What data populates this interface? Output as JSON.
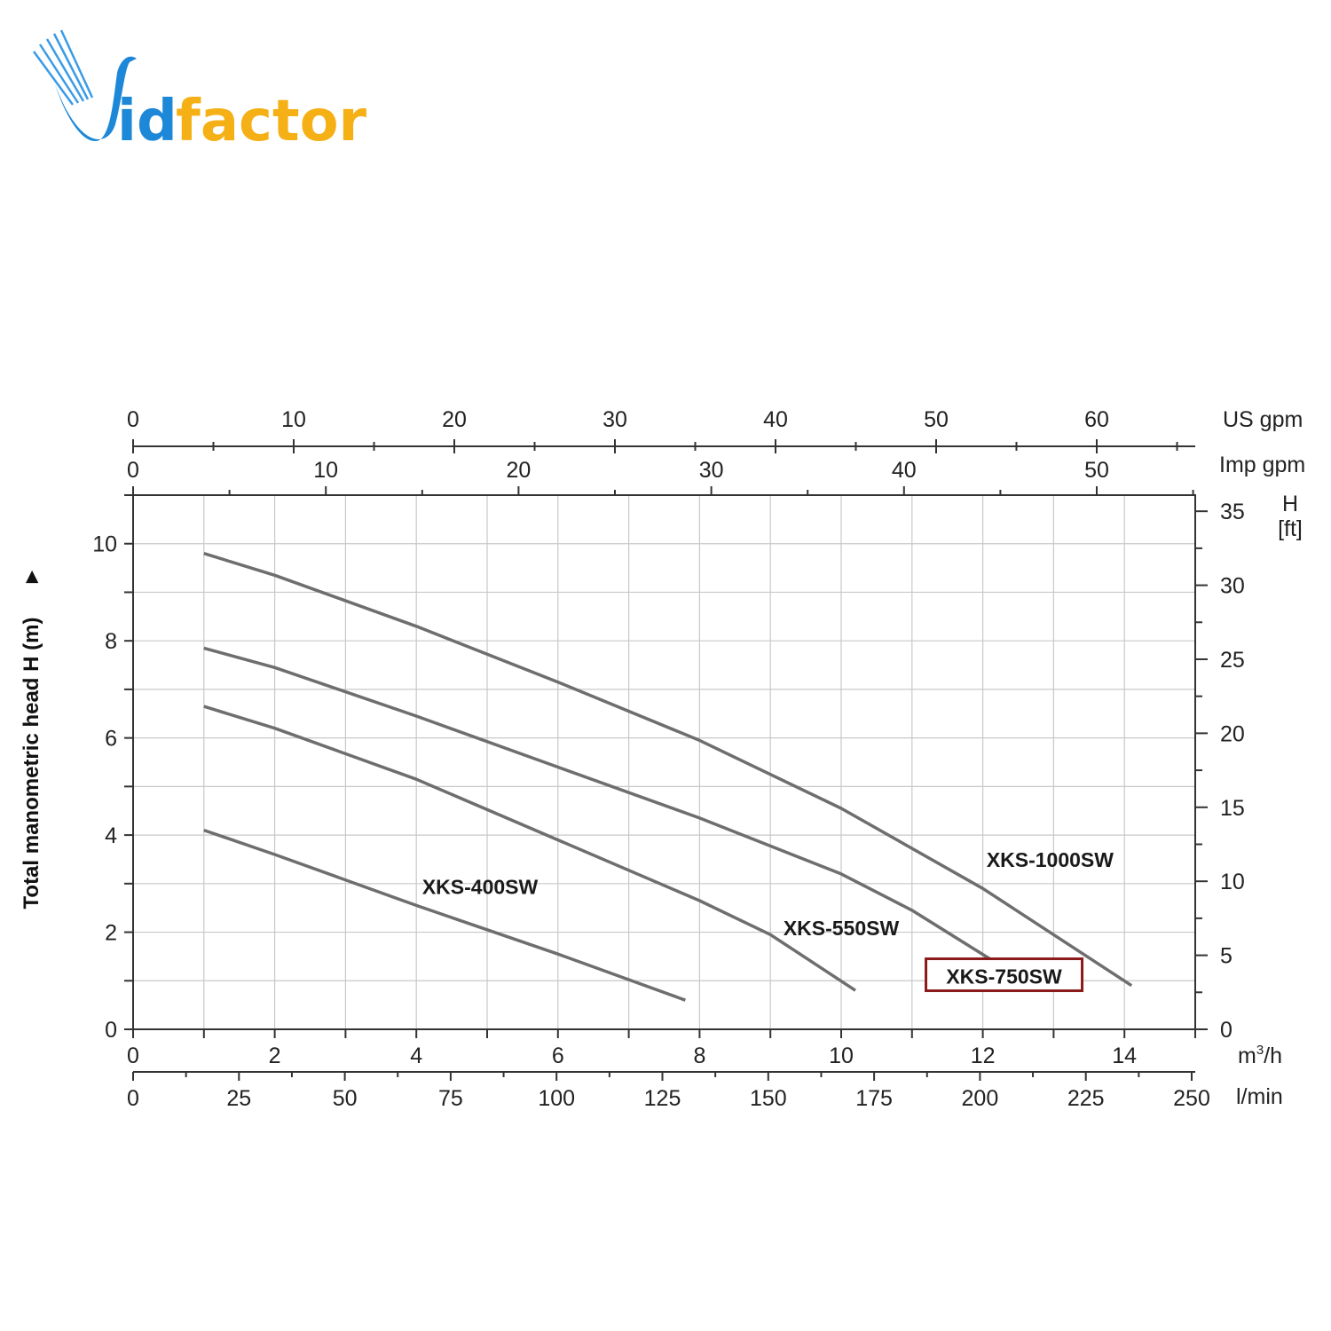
{
  "logo": {
    "text_id": "id",
    "text_factor": "factor",
    "color_blue": "#1e88d8",
    "color_yellow": "#f5b016"
  },
  "chart_data": {
    "type": "line",
    "title": "",
    "ylabel": "Total manometric head H (m)",
    "ylabel_arrow": "►",
    "xlim": [
      0,
      15
    ],
    "ylim": [
      0,
      11
    ],
    "x_unit": "m³/h",
    "x_unit_base": "m",
    "x_unit_sup": "3",
    "x_unit_tail": "/h",
    "x_ticks": [
      0,
      2,
      4,
      6,
      8,
      10,
      12,
      14
    ],
    "y_ticks": [
      0,
      2,
      4,
      6,
      8,
      10
    ],
    "lmin_unit": "l/min",
    "lmin_ticks": [
      0,
      25,
      50,
      75,
      100,
      125,
      150,
      175,
      200,
      225,
      250
    ],
    "usgpm_unit": "US gpm",
    "usgpm_ticks": [
      0,
      10,
      20,
      30,
      40,
      50,
      60
    ],
    "impgpm_unit": "Imp gpm",
    "impgpm_ticks": [
      0,
      10,
      20,
      30,
      40,
      50
    ],
    "ft_unit_line1": "H",
    "ft_unit_line2": "[ft]",
    "ft_ticks": [
      0,
      5,
      10,
      15,
      20,
      25,
      30,
      35
    ],
    "grid": true,
    "series": [
      {
        "name": "XKS-400SW",
        "x": [
          1,
          2,
          4,
          6,
          7.8
        ],
        "y": [
          4.1,
          3.6,
          2.55,
          1.55,
          0.6
        ],
        "label_x": 4.9,
        "label_y": 2.9
      },
      {
        "name": "XKS-550SW",
        "x": [
          1,
          2,
          4,
          6,
          8,
          9,
          10.2
        ],
        "y": [
          6.65,
          6.2,
          5.15,
          3.9,
          2.65,
          1.95,
          0.8
        ],
        "label_x": 10.0,
        "label_y": 2.05
      },
      {
        "name": "XKS-750SW",
        "x": [
          1,
          2,
          4,
          6,
          8,
          10,
          11,
          12.1
        ],
        "y": [
          7.85,
          7.45,
          6.45,
          5.4,
          4.35,
          3.2,
          2.45,
          1.45
        ],
        "label_x": 12.3,
        "label_y": 1.05
      },
      {
        "name": "XKS-1000SW",
        "x": [
          1,
          2,
          4,
          6,
          8,
          10,
          12,
          14.1
        ],
        "y": [
          9.8,
          9.35,
          8.3,
          7.15,
          5.95,
          4.55,
          2.9,
          0.9
        ],
        "label_x": 12.95,
        "label_y": 3.45
      }
    ],
    "highlighted_series": "XKS-750SW",
    "highlight_color": "#8b1a1a",
    "line_color": "#6e6e6e"
  }
}
